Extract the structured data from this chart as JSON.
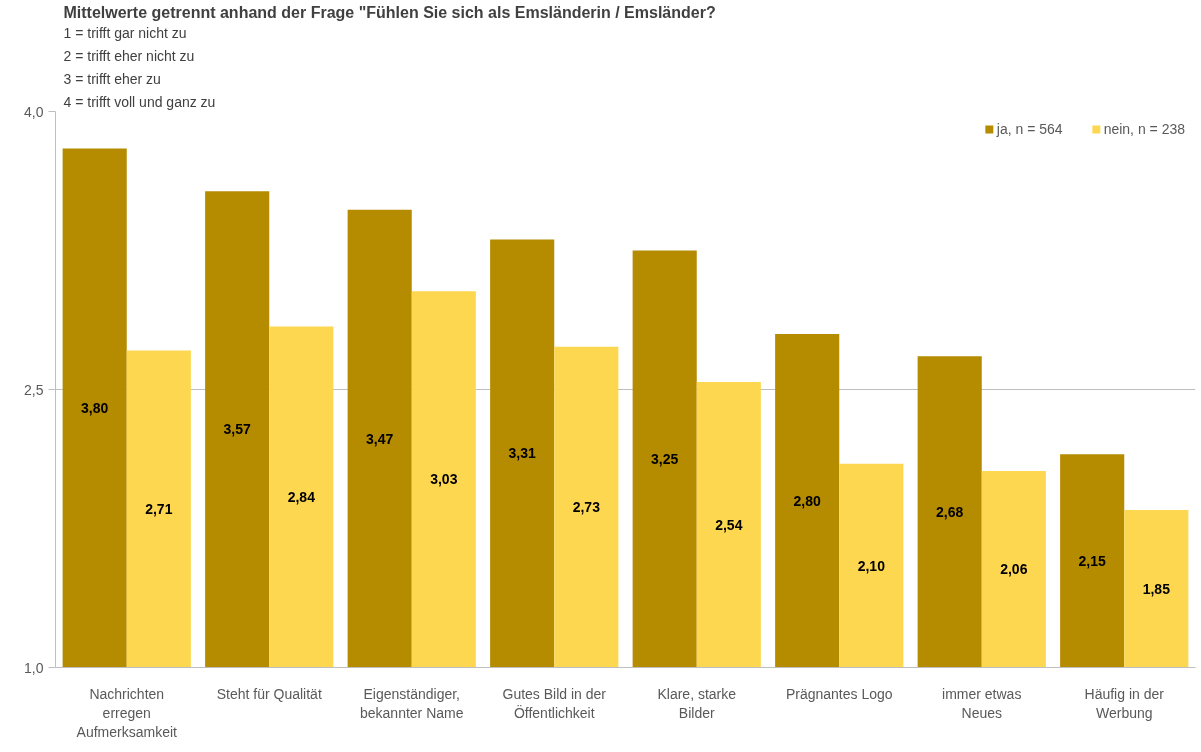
{
  "chart_data": {
    "type": "bar",
    "title": "Mittelwerte getrennt anhand der Frage \"Fühlen Sie sich als Emsländerin / Emsländer?",
    "subtitle": "1 = trifft gar nicht zu\n2 = trifft eher nicht zu\n3 = trifft eher zu\n4 = trifft voll und ganz zu",
    "categories": [
      "Nachrichten\nerregen\nAufmerksamkeit",
      "Steht für Qualität",
      "Eigenständiger,\nbekannter Name",
      "Gutes Bild in der\nÖffentlichkeit",
      "Klare, starke\nBilder",
      "Prägnantes Logo",
      "immer etwas\nNeues",
      "Häufig in der\nWerbung"
    ],
    "series": [
      {
        "name": "ja, n = 564",
        "color": "#b58b00",
        "values": [
          3.8,
          3.57,
          3.47,
          3.31,
          3.25,
          2.8,
          2.68,
          2.15
        ],
        "value_labels": [
          "3,80",
          "3,57",
          "3,47",
          "3,31",
          "3,25",
          "2,80",
          "2,68",
          "2,15"
        ]
      },
      {
        "name": "nein, n = 238",
        "color": "#fed750",
        "values": [
          2.71,
          2.84,
          3.03,
          2.73,
          2.54,
          2.1,
          2.06,
          1.85
        ],
        "value_labels": [
          "2,71",
          "2,84",
          "3,03",
          "2,73",
          "2,54",
          "2,10",
          "2,06",
          "1,85"
        ]
      }
    ],
    "ylim": [
      1.0,
      4.0
    ],
    "yticks": [
      {
        "value": 1.0,
        "label": "1,0"
      },
      {
        "value": 2.5,
        "label": "2,5"
      },
      {
        "value": 4.0,
        "label": "4,0"
      }
    ],
    "grid": "y",
    "legend": "top right"
  }
}
